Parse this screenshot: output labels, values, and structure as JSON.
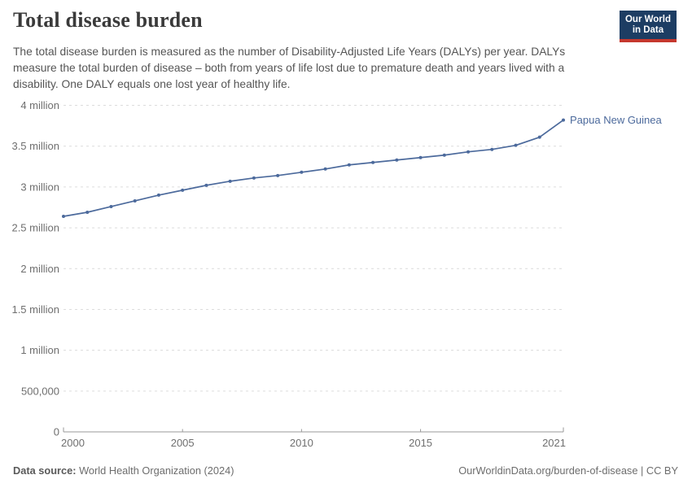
{
  "header": {
    "title": "Total disease burden",
    "subtitle": "The total disease burden is measured as the number of Disability-Adjusted Life Years (DALYs) per year. DALYs measure the total burden of disease – both from years of life lost due to premature death and years lived with a disability. One DALY equals one lost year of healthy life.",
    "logo": {
      "line1": "Our World",
      "line2": "in Data"
    }
  },
  "chart_data": {
    "type": "line",
    "title": "Total disease burden",
    "xlabel": "",
    "ylabel": "",
    "xlim": [
      2000,
      2021
    ],
    "ylim": [
      0,
      4000000
    ],
    "grid": "horizontal-dashed",
    "legend": "end-of-line-label",
    "x": [
      2000,
      2001,
      2002,
      2003,
      2004,
      2005,
      2006,
      2007,
      2008,
      2009,
      2010,
      2011,
      2012,
      2013,
      2014,
      2015,
      2016,
      2017,
      2018,
      2019,
      2020,
      2021
    ],
    "series": [
      {
        "name": "Papua New Guinea",
        "color": "#4C6A9C",
        "values": [
          2640000,
          2690000,
          2760000,
          2830000,
          2900000,
          2960000,
          3020000,
          3070000,
          3110000,
          3140000,
          3180000,
          3220000,
          3270000,
          3300000,
          3330000,
          3360000,
          3390000,
          3430000,
          3460000,
          3510000,
          3610000,
          3820000
        ]
      }
    ],
    "yticks": [
      {
        "value": 0,
        "label": "0"
      },
      {
        "value": 500000,
        "label": "500,000"
      },
      {
        "value": 1000000,
        "label": "1 million"
      },
      {
        "value": 1500000,
        "label": "1.5 million"
      },
      {
        "value": 2000000,
        "label": "2 million"
      },
      {
        "value": 2500000,
        "label": "2.5 million"
      },
      {
        "value": 3000000,
        "label": "3 million"
      },
      {
        "value": 3500000,
        "label": "3.5 million"
      },
      {
        "value": 4000000,
        "label": "4 million"
      }
    ],
    "xticks": [
      {
        "value": 2000,
        "label": "2000",
        "align": "start"
      },
      {
        "value": 2005,
        "label": "2005",
        "align": "middle"
      },
      {
        "value": 2010,
        "label": "2010",
        "align": "middle"
      },
      {
        "value": 2015,
        "label": "2015",
        "align": "middle"
      },
      {
        "value": 2021,
        "label": "2021",
        "align": "end"
      }
    ]
  },
  "footer": {
    "source_label": "Data source:",
    "source_value": " World Health Organization (2024)",
    "link": "OurWorldinData.org/burden-of-disease | CC BY"
  },
  "colors": {
    "line": "#4C6A9C",
    "grid": "#dcdcdc",
    "axis": "#9a9a9a",
    "tick_label": "#6f6f6f",
    "title": "#3a3a3a",
    "subtitle": "#555555",
    "footer": "#6d6d6d",
    "logo_bg": "#1d3d63",
    "logo_bar": "#c5382e"
  }
}
